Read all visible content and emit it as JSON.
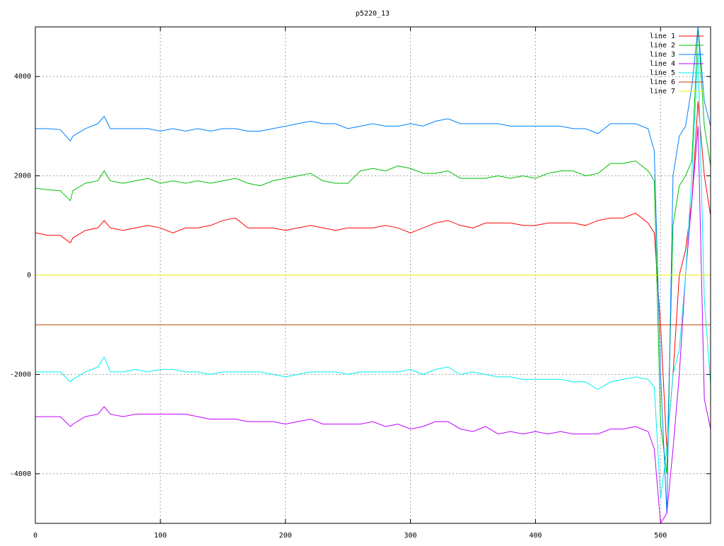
{
  "chart_data": {
    "type": "line",
    "title": "p5220_13",
    "x": [
      0,
      10,
      20,
      28,
      30,
      40,
      50,
      55,
      60,
      70,
      80,
      90,
      100,
      110,
      120,
      130,
      140,
      150,
      160,
      170,
      180,
      190,
      200,
      210,
      220,
      230,
      240,
      250,
      260,
      270,
      280,
      290,
      300,
      310,
      320,
      330,
      340,
      350,
      360,
      370,
      380,
      390,
      400,
      410,
      420,
      430,
      440,
      450,
      460,
      470,
      480,
      490,
      495,
      500,
      505,
      510,
      515,
      520,
      525,
      530,
      535,
      540
    ],
    "xlim": [
      0,
      540
    ],
    "xticks": [
      0,
      100,
      200,
      300,
      400,
      500
    ],
    "ylim": [
      -5000,
      5000
    ],
    "yticks": [
      -4000,
      -2000,
      0,
      2000,
      4000
    ],
    "grid": true,
    "legend": "top-right",
    "series": [
      {
        "name": "line 1",
        "color": "#ff0000",
        "values": [
          850,
          800,
          800,
          650,
          750,
          900,
          950,
          1100,
          950,
          900,
          950,
          1000,
          950,
          850,
          950,
          950,
          1000,
          1100,
          1150,
          950,
          950,
          950,
          900,
          950,
          1000,
          950,
          900,
          950,
          950,
          950,
          1000,
          950,
          850,
          950,
          1050,
          1100,
          1000,
          950,
          1050,
          1050,
          1050,
          1000,
          1000,
          1050,
          1050,
          1050,
          1000,
          1100,
          1150,
          1150,
          1250,
          1050,
          850,
          -1000,
          -3500,
          -2000,
          0,
          500,
          1500,
          3500,
          2000,
          1200
        ]
      },
      {
        "name": "line 2",
        "color": "#00c000",
        "values": [
          1750,
          1720,
          1700,
          1500,
          1700,
          1850,
          1900,
          2100,
          1900,
          1850,
          1900,
          1950,
          1850,
          1900,
          1850,
          1900,
          1850,
          1900,
          1950,
          1850,
          1800,
          1900,
          1950,
          2000,
          2050,
          1900,
          1850,
          1850,
          2100,
          2150,
          2100,
          2200,
          2150,
          2050,
          2050,
          2100,
          1950,
          1950,
          1950,
          2000,
          1950,
          2000,
          1950,
          2050,
          2100,
          2100,
          2000,
          2050,
          2250,
          2250,
          2300,
          2100,
          1900,
          -3000,
          -4000,
          1000,
          1800,
          2000,
          2300,
          5000,
          3000,
          2200
        ]
      },
      {
        "name": "line 3",
        "color": "#0080ff",
        "values": [
          2950,
          2950,
          2930,
          2700,
          2800,
          2950,
          3050,
          3200,
          2950,
          2950,
          2950,
          2950,
          2900,
          2950,
          2900,
          2950,
          2900,
          2950,
          2950,
          2900,
          2900,
          2950,
          3000,
          3050,
          3100,
          3050,
          3050,
          2950,
          3000,
          3050,
          3000,
          3000,
          3050,
          3000,
          3100,
          3150,
          3050,
          3050,
          3050,
          3050,
          3000,
          3000,
          3000,
          3000,
          3000,
          2950,
          2950,
          2850,
          3050,
          3050,
          3050,
          2950,
          2500,
          -2000,
          -4800,
          2000,
          2800,
          3000,
          3800,
          5000,
          3500,
          3000
        ]
      },
      {
        "name": "line 4",
        "color": "#c000ff",
        "values": [
          -2850,
          -2850,
          -2850,
          -3050,
          -3000,
          -2850,
          -2800,
          -2650,
          -2800,
          -2850,
          -2800,
          -2800,
          -2800,
          -2800,
          -2800,
          -2850,
          -2900,
          -2900,
          -2900,
          -2950,
          -2950,
          -2950,
          -3000,
          -2950,
          -2900,
          -3000,
          -3000,
          -3000,
          -3000,
          -2950,
          -3050,
          -3000,
          -3100,
          -3050,
          -2950,
          -2950,
          -3100,
          -3150,
          -3050,
          -3200,
          -3150,
          -3200,
          -3150,
          -3200,
          -3150,
          -3200,
          -3200,
          -3200,
          -3100,
          -3100,
          -3050,
          -3150,
          -3500,
          -5000,
          -4800,
          -3500,
          -2000,
          0,
          1500,
          3000,
          -2500,
          -3100
        ]
      },
      {
        "name": "line 5",
        "color": "#00eeee",
        "values": [
          -1950,
          -1950,
          -1950,
          -2150,
          -2100,
          -1950,
          -1850,
          -1650,
          -1950,
          -1950,
          -1900,
          -1950,
          -1900,
          -1900,
          -1950,
          -1950,
          -2000,
          -1950,
          -1950,
          -1950,
          -1950,
          -2000,
          -2050,
          -2000,
          -1950,
          -1950,
          -1950,
          -2000,
          -1950,
          -1950,
          -1950,
          -1950,
          -1900,
          -2000,
          -1900,
          -1850,
          -2000,
          -1950,
          -2000,
          -2050,
          -2050,
          -2100,
          -2100,
          -2100,
          -2100,
          -2150,
          -2150,
          -2300,
          -2150,
          -2100,
          -2050,
          -2100,
          -2250,
          -4500,
          -3500,
          -2000,
          -1500,
          0,
          2000,
          4500,
          -500,
          -2200
        ]
      },
      {
        "name": "line 6",
        "color": "#c04000",
        "values": [
          -1000,
          -1000,
          -1000,
          -1000,
          -1000,
          -1000,
          -1000,
          -1000,
          -1000,
          -1000,
          -1000,
          -1000,
          -1000,
          -1000,
          -1000,
          -1000,
          -1000,
          -1000,
          -1000,
          -1000,
          -1000,
          -1000,
          -1000,
          -1000,
          -1000,
          -1000,
          -1000,
          -1000,
          -1000,
          -1000,
          -1000,
          -1000,
          -1000,
          -1000,
          -1000,
          -1000,
          -1000,
          -1000,
          -1000,
          -1000,
          -1000,
          -1000,
          -1000,
          -1000,
          -1000,
          -1000,
          -1000,
          -1000,
          -1000,
          -1000,
          -1000,
          -1000,
          -1000,
          -1000,
          -1000,
          -1000,
          -1000,
          -1000,
          -1000,
          -1000,
          -1000,
          -1000
        ]
      },
      {
        "name": "line 7",
        "color": "#eeee00",
        "values": [
          0,
          0,
          0,
          0,
          0,
          0,
          0,
          0,
          0,
          0,
          0,
          0,
          0,
          0,
          0,
          0,
          0,
          0,
          0,
          0,
          0,
          0,
          0,
          0,
          0,
          0,
          0,
          0,
          0,
          0,
          0,
          0,
          0,
          0,
          0,
          0,
          0,
          0,
          0,
          0,
          0,
          0,
          0,
          0,
          0,
          0,
          0,
          0,
          0,
          0,
          0,
          0,
          0,
          0,
          0,
          0,
          0,
          0,
          0,
          0,
          0,
          0
        ]
      }
    ]
  }
}
